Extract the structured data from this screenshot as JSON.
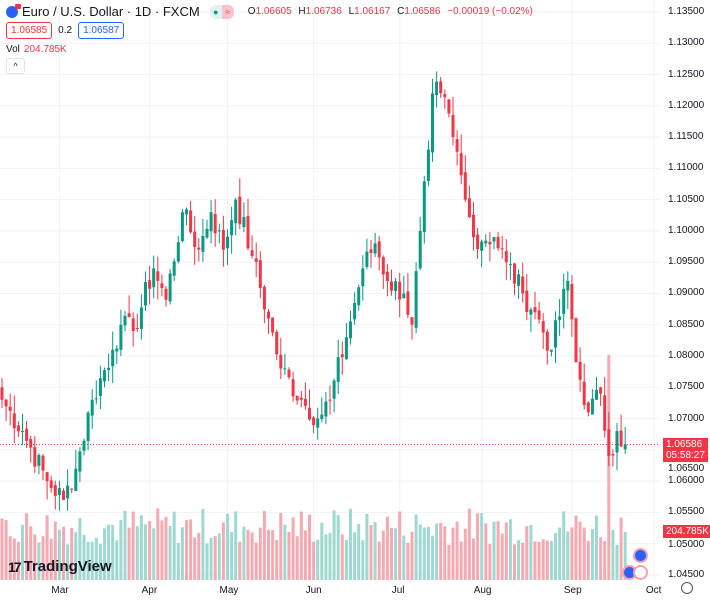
{
  "header": {
    "symbol": "Euro / U.S. Dollar · 1D · FXCM",
    "status_open": "●",
    "status_closed": "≈",
    "o_label": "O",
    "o": "1.06605",
    "h_label": "H",
    "h": "1.06736",
    "l_label": "L",
    "l": "1.06167",
    "c_label": "C",
    "c": "1.06586",
    "change": "−0.00019 (−0.02%)",
    "sell": "1.06585",
    "spread": "0.2",
    "buy": "1.06587",
    "vol_label": "Vol",
    "vol_value": "204.785K",
    "collapse": "^"
  },
  "price_tag": {
    "price": "1.06586",
    "countdown": "05:58:27"
  },
  "volume_tag": "204.785K",
  "branding": {
    "logo_text": "TradingView",
    "logo_mark": "17"
  },
  "colors": {
    "up": "#089981",
    "down": "#f23645",
    "up_vol": "#9fd8d1",
    "down_vol": "#f7a9b1"
  },
  "chart_data": {
    "type": "candlestick",
    "title": "Euro / U.S. Dollar · 1D · FXCM",
    "y_ticks": [
      "1.13500",
      "1.13000",
      "1.12500",
      "1.12000",
      "1.11500",
      "1.11000",
      "1.10500",
      "1.10000",
      "1.09500",
      "1.09000",
      "1.08500",
      "1.08000",
      "1.07500",
      "1.07000",
      "1.06500",
      "1.06000",
      "1.05500",
      "1.05000",
      "1.04500"
    ],
    "ylim": [
      1.045,
      1.135
    ],
    "x_ticks": [
      {
        "label": "Mar",
        "bar": 14
      },
      {
        "label": "Apr",
        "bar": 36
      },
      {
        "label": "May",
        "bar": 55
      },
      {
        "label": "Jun",
        "bar": 76
      },
      {
        "label": "Jul",
        "bar": 97
      },
      {
        "label": "Aug",
        "bar": 117
      },
      {
        "label": "Sep",
        "bar": 139
      },
      {
        "label": "Oct",
        "bar": 159
      }
    ],
    "bars": 153,
    "close_path": [
      [
        0,
        1.073
      ],
      [
        5,
        1.068
      ],
      [
        11,
        1.06
      ],
      [
        15,
        1.057
      ],
      [
        18,
        1.062
      ],
      [
        22,
        1.073
      ],
      [
        27,
        1.081
      ],
      [
        29,
        1.085
      ],
      [
        32,
        1.084
      ],
      [
        37,
        1.094
      ],
      [
        40,
        1.089
      ],
      [
        44,
        1.103
      ],
      [
        48,
        1.097
      ],
      [
        51,
        1.103
      ],
      [
        54,
        1.097
      ],
      [
        57,
        1.105
      ],
      [
        61,
        1.096
      ],
      [
        65,
        1.086
      ],
      [
        68,
        1.078
      ],
      [
        73,
        1.073
      ],
      [
        77,
        1.07
      ],
      [
        80,
        1.073
      ],
      [
        84,
        1.083
      ],
      [
        88,
        1.094
      ],
      [
        91,
        1.098
      ],
      [
        94,
        1.092
      ],
      [
        98,
        1.09
      ],
      [
        100,
        1.085
      ],
      [
        102,
        1.1
      ],
      [
        104,
        1.113
      ],
      [
        105,
        1.122
      ],
      [
        107,
        1.122
      ],
      [
        110,
        1.115
      ],
      [
        113,
        1.105
      ],
      [
        115,
        1.099
      ],
      [
        120,
        1.099
      ],
      [
        123,
        1.095
      ],
      [
        127,
        1.09
      ],
      [
        130,
        1.087
      ],
      [
        134,
        1.081
      ],
      [
        138,
        1.092
      ],
      [
        140,
        1.079
      ],
      [
        143,
        1.071
      ],
      [
        146,
        1.074
      ],
      [
        148,
        1.064
      ],
      [
        150,
        1.068
      ],
      [
        152,
        1.06586
      ]
    ],
    "last_price": 1.06586,
    "volume_last": 204785,
    "volume_spike": {
      "bar": 148,
      "value": 960000
    }
  }
}
